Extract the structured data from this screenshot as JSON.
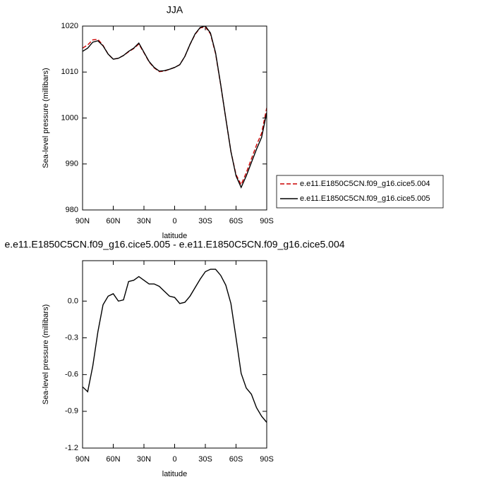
{
  "chart_data": [
    {
      "type": "line",
      "title": "JJA",
      "xlabel": "latitude",
      "ylabel": "Sea-level pressure (millibars)",
      "x": [
        90,
        85,
        80,
        75,
        70,
        65,
        60,
        55,
        50,
        45,
        40,
        35,
        30,
        25,
        20,
        15,
        10,
        5,
        0,
        -5,
        -10,
        -15,
        -20,
        -25,
        -30,
        -35,
        -40,
        -45,
        -50,
        -55,
        -60,
        -65,
        -70,
        -75,
        -80,
        -85,
        -90
      ],
      "xlim": [
        90,
        -90
      ],
      "xticks": [
        {
          "value": 90,
          "label": "90N"
        },
        {
          "value": 60,
          "label": "60N"
        },
        {
          "value": 30,
          "label": "30N"
        },
        0,
        {
          "value": -30,
          "label": "30S"
        },
        {
          "value": -60,
          "label": "60S"
        },
        {
          "value": -90,
          "label": "90S"
        }
      ],
      "ylim": [
        980,
        1020
      ],
      "yticks": [
        980,
        990,
        1000,
        1010,
        1020
      ],
      "series": [
        {
          "name": "e.e11.E1850C5CN.f09_g16.cice5.004",
          "color": "#cc0000",
          "dashed": true,
          "values": [
            1015.2,
            1015.9,
            1017.0,
            1017.1,
            1015.8,
            1013.9,
            1012.8,
            1013.0,
            1013.6,
            1014.4,
            1015.1,
            1016.1,
            1014.2,
            1012.2,
            1010.9,
            1010.1,
            1010.2,
            1010.6,
            1011.0,
            1011.6,
            1013.4,
            1016.0,
            1018.2,
            1019.6,
            1019.8,
            1018.3,
            1014.0,
            1007.2,
            999.9,
            992.7,
            987.7,
            985.5,
            988.1,
            991.1,
            994.1,
            996.7,
            1002.2
          ]
        },
        {
          "name": "e.e11.E1850C5CN.f09_g16.cice5.005",
          "color": "#000000",
          "dashed": false,
          "values": [
            1014.5,
            1015.2,
            1016.5,
            1016.8,
            1015.7,
            1013.9,
            1012.8,
            1013.0,
            1013.6,
            1014.5,
            1015.2,
            1016.3,
            1014.3,
            1012.3,
            1011.0,
            1010.2,
            1010.3,
            1010.6,
            1011.0,
            1011.6,
            1013.4,
            1016.0,
            1018.3,
            1019.7,
            1020.0,
            1018.5,
            1014.2,
            1007.3,
            999.9,
            992.7,
            987.4,
            984.9,
            987.4,
            990.3,
            993.2,
            995.8,
            1001.2
          ]
        }
      ]
    },
    {
      "type": "line",
      "title": "e.e11.E1850C5CN.f09_g16.cice5.005 - e.e11.E1850C5CN.f09_g16.cice5.004",
      "xlabel": "latitude",
      "ylabel": "Sea-level pressure (millibars)",
      "x": [
        90,
        85,
        80,
        75,
        70,
        65,
        60,
        55,
        50,
        45,
        40,
        35,
        30,
        25,
        20,
        15,
        10,
        5,
        0,
        -5,
        -10,
        -15,
        -20,
        -25,
        -30,
        -35,
        -40,
        -45,
        -50,
        -55,
        -60,
        -65,
        -70,
        -75,
        -80,
        -85,
        -90
      ],
      "xlim": [
        90,
        -90
      ],
      "xticks": [
        {
          "value": 90,
          "label": "90N"
        },
        {
          "value": 60,
          "label": "60N"
        },
        {
          "value": 30,
          "label": "30N"
        },
        0,
        {
          "value": -30,
          "label": "30S"
        },
        {
          "value": -60,
          "label": "60S"
        },
        {
          "value": -90,
          "label": "90S"
        }
      ],
      "ylim": [
        -1.2,
        0.33
      ],
      "yticks": [
        -1.2,
        -0.9,
        -0.6,
        -0.3,
        {
          "value": 0,
          "label": "0.0"
        }
      ],
      "color": "#000000",
      "values": [
        -0.7,
        -0.74,
        -0.53,
        -0.25,
        -0.03,
        0.04,
        0.06,
        0.0,
        0.01,
        0.16,
        0.17,
        0.2,
        0.17,
        0.14,
        0.14,
        0.12,
        0.08,
        0.04,
        0.03,
        -0.02,
        -0.01,
        0.04,
        0.11,
        0.18,
        0.24,
        0.26,
        0.26,
        0.21,
        0.13,
        -0.02,
        -0.3,
        -0.59,
        -0.71,
        -0.76,
        -0.87,
        -0.94,
        -0.99
      ]
    }
  ]
}
